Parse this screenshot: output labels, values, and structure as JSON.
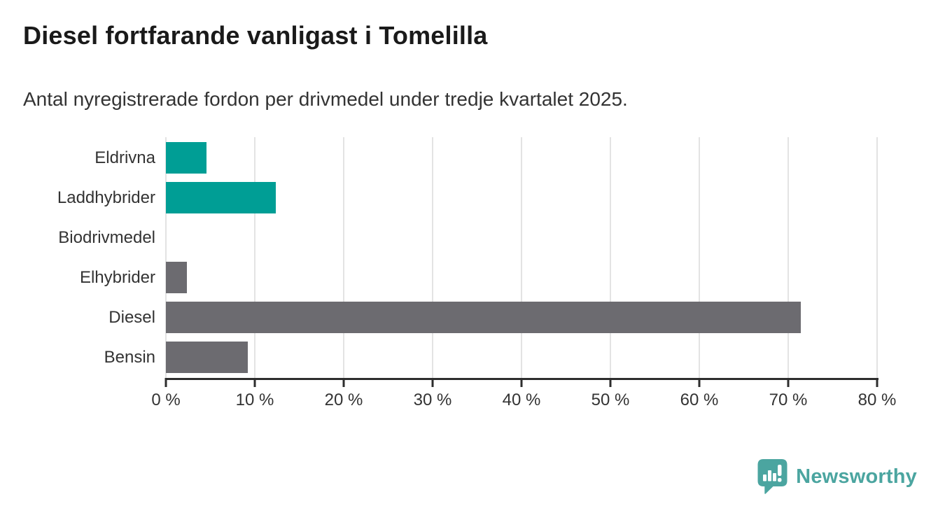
{
  "chart_data": {
    "type": "bar",
    "orientation": "horizontal",
    "title": "Diesel fortfarande vanligast i Tomelilla",
    "subtitle": "Antal nyregistrerade fordon per drivmedel under tredje kvartalet 2025.",
    "categories": [
      "Eldrivna",
      "Laddhybrider",
      "Biodrivmedel",
      "Elhybrider",
      "Diesel",
      "Bensin"
    ],
    "values": [
      4.6,
      12.4,
      0,
      2.4,
      71.4,
      9.2
    ],
    "unit": "%",
    "xlabel": "",
    "ylabel": "",
    "xlim": [
      0,
      80
    ],
    "x_ticks": [
      0,
      10,
      20,
      30,
      40,
      50,
      60,
      70,
      80
    ],
    "x_tick_suffix": " %",
    "grid": "vertical-light",
    "legend": "none",
    "bar_colors": [
      "#009e95",
      "#009e95",
      "#009e95",
      "#6c6b70",
      "#6c6b70",
      "#6c6b70"
    ]
  },
  "colors": {
    "teal": "#009e95",
    "gray": "#6c6b70",
    "gridline": "#e3e3e3",
    "axis": "#2d2d2d",
    "title_text": "#1a1a1a",
    "body_text": "#333333",
    "logo_teal": "#4ba5a0"
  },
  "branding": {
    "logo_text": "Newsworthy",
    "logo_icon": "newsworthy-pin-barchart-icon"
  }
}
